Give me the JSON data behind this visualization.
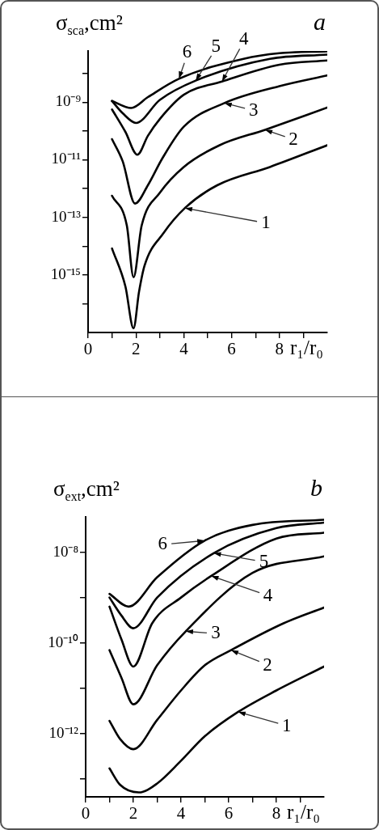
{
  "chart_data": [
    {
      "type": "line",
      "ylabel": "σ$_{sca}$,cm²",
      "xlabel": "r₁/r₀",
      "log": "y",
      "grid": false,
      "marker": "none",
      "line_style": "solid",
      "xlim": [
        0,
        10
      ],
      "xticks": [
        0,
        {
          "value": 1,
          "label": null
        },
        2,
        {
          "value": 3,
          "label": null
        },
        4,
        {
          "value": 5,
          "label": null
        },
        6,
        {
          "value": 7,
          "label": null
        },
        8,
        {
          "value": 9,
          "label": null
        }
      ],
      "ylim": [
        1e-17,
        6e-08
      ],
      "yticks": [
        {
          "value": 1e-16,
          "label": null
        },
        {
          "value": 1e-15,
          "label": "10⁻¹⁵"
        },
        {
          "value": 1e-14,
          "label": null
        },
        {
          "value": 1e-13,
          "label": "10⁻¹³"
        },
        {
          "value": 1e-12,
          "label": null
        },
        {
          "value": 1e-11,
          "label": "10⁻¹¹"
        },
        {
          "value": 1e-10,
          "label": null
        },
        {
          "value": 1e-09,
          "label": "10⁻⁹"
        },
        {
          "value": 1e-08,
          "label": null
        }
      ],
      "series": [
        {
          "color": "#000000",
          "x": [
            1,
            1.56,
            1.9,
            2.13,
            2.36,
            3.15,
            4.05,
            5.4,
            7.6,
            10
          ],
          "values": [
            8.3e-15,
            4e-16,
            1.4e-17,
            2.6e-16,
            2.1e-15,
            2.8e-14,
            2.1e-13,
            1.3e-12,
            5.6e-12,
            3.2e-11
          ]
        },
        {
          "color": "#000000",
          "x": [
            1,
            1.62,
            1.9,
            2.24,
            3,
            4,
            5.5,
            7.4,
            10
          ],
          "values": [
            5.6e-13,
            5.2e-14,
            8.3e-16,
            5.2e-14,
            7.1e-13,
            5.6e-12,
            3.2e-11,
            1.1e-10,
            6.5e-10
          ]
        },
        {
          "color": "#000000",
          "x": [
            1,
            1.45,
            1.96,
            2.5,
            3.1,
            4,
            5.7,
            8,
            10
          ],
          "values": [
            5.2e-11,
            8.7e-12,
            3e-13,
            1.3e-12,
            1.1e-11,
            1.4e-10,
            9.3e-10,
            3.6e-09,
            8.5e-09
          ]
        },
        {
          "color": "#000000",
          "x": [
            1,
            1.56,
            2.06,
            2.5,
            3,
            4,
            5.6,
            8,
            10
          ],
          "values": [
            5.6e-10,
            9.3e-11,
            1.5e-11,
            6.8e-11,
            2.6e-10,
            1.8e-09,
            5.2e-09,
            2e-08,
            2.8e-08
          ]
        },
        {
          "color": "#000000",
          "x": [
            1,
            1.45,
            2,
            3,
            4.5,
            7.6,
            10
          ],
          "values": [
            1.1e-09,
            4.1e-10,
            1.9e-10,
            1.2e-09,
            5.6e-09,
            3.2e-08,
            4.5e-08
          ]
        },
        {
          "color": "#000000",
          "x": [
            1,
            1.8,
            2.5,
            3.8,
            6.5,
            8,
            10
          ],
          "values": [
            1.1e-09,
            6.3e-10,
            1.5e-09,
            6.5e-09,
            3.2e-08,
            5e-08,
            5.8e-08
          ]
        }
      ],
      "annotations": [
        "a",
        {
          "text": "1",
          "x": 4.05,
          "y": 2.1e-13
        },
        {
          "text": "2",
          "x": 7.4,
          "y": 1.1e-10
        },
        {
          "text": "3",
          "x": 5.7,
          "y": 9.3e-10
        },
        {
          "text": "4",
          "x": 5.6,
          "y": 5.2e-09
        },
        {
          "text": "5",
          "x": 4.5,
          "y": 5.6e-09
        },
        {
          "text": "6",
          "x": 3.8,
          "y": 6.5e-09
        }
      ]
    },
    {
      "type": "line",
      "ylabel": "σ$_{ext}$,cm²",
      "xlabel": "r₁/r₀",
      "log": "y",
      "grid": false,
      "marker": "none",
      "line_style": "solid",
      "xlim": [
        0,
        10
      ],
      "xticks": [
        0,
        {
          "value": 1,
          "label": null
        },
        2,
        {
          "value": 3,
          "label": null
        },
        4,
        {
          "value": 5,
          "label": null
        },
        6,
        {
          "value": 7,
          "label": null
        },
        8,
        {
          "value": 9,
          "label": null
        }
      ],
      "ylim": [
        4e-14,
        6e-08
      ],
      "yticks": [
        {
          "value": 1e-13,
          "label": null
        },
        {
          "value": 1e-12,
          "label": "10⁻¹²"
        },
        {
          "value": 1e-11,
          "label": null
        },
        {
          "value": 1e-10,
          "label": "10⁻¹⁰"
        },
        {
          "value": 1e-09,
          "label": null
        },
        {
          "value": 1e-08,
          "label": "10⁻⁸"
        }
      ],
      "series": [
        {
          "color": "#000000",
          "x": [
            1,
            1.44,
            2.23,
            3,
            4,
            5,
            6.4,
            8,
            10
          ],
          "values": [
            1.7e-13,
            7.4e-14,
            5e-14,
            7.9e-14,
            2.5e-13,
            8.7e-13,
            3e-12,
            8.9e-12,
            3e-11
          ]
        },
        {
          "color": "#000000",
          "x": [
            1,
            1.44,
            2,
            3,
            4,
            5,
            6.1,
            8.3,
            10
          ],
          "values": [
            1.9e-12,
            7.6e-13,
            4.5e-13,
            2e-12,
            8.9e-12,
            3.2e-11,
            6.9e-11,
            2.7e-10,
            6e-10
          ]
        },
        {
          "color": "#000000",
          "x": [
            1,
            1.5,
            2,
            3,
            4.2,
            7,
            10
          ],
          "values": [
            6.9e-11,
            1.7e-11,
            4.4e-12,
            3.2e-11,
            1.8e-10,
            3.5e-09,
            8.1e-09
          ]
        },
        {
          "color": "#000000",
          "x": [
            1,
            1.5,
            2,
            2.79,
            4,
            5.27,
            8,
            10
          ],
          "values": [
            6.3e-10,
            1.2e-10,
            3e-11,
            2.7e-10,
            1e-09,
            3e-09,
            2e-08,
            2.7e-08
          ]
        },
        {
          "color": "#000000",
          "x": [
            1,
            1.5,
            2,
            3,
            5.37,
            8,
            10
          ],
          "values": [
            1e-09,
            4e-10,
            2.1e-10,
            1e-09,
            9.5e-09,
            3.4e-08,
            4.5e-08
          ]
        },
        {
          "color": "#000000",
          "x": [
            1,
            1.8,
            3,
            4.99,
            7,
            10
          ],
          "values": [
            1.2e-09,
            6.3e-10,
            2.8e-09,
            1.8e-08,
            4e-08,
            5.2e-08
          ]
        }
      ],
      "annotations": [
        "b",
        {
          "text": "1",
          "x": 6.4,
          "y": 3e-12
        },
        {
          "text": "2",
          "x": 6.1,
          "y": 6.9e-11
        },
        {
          "text": "3",
          "x": 4.2,
          "y": 1.8e-10
        },
        {
          "text": "4",
          "x": 5.27,
          "y": 3e-09
        },
        {
          "text": "5",
          "x": 5.37,
          "y": 9.5e-09
        },
        {
          "text": "6",
          "x": 4.99,
          "y": 1.8e-08
        }
      ]
    }
  ]
}
